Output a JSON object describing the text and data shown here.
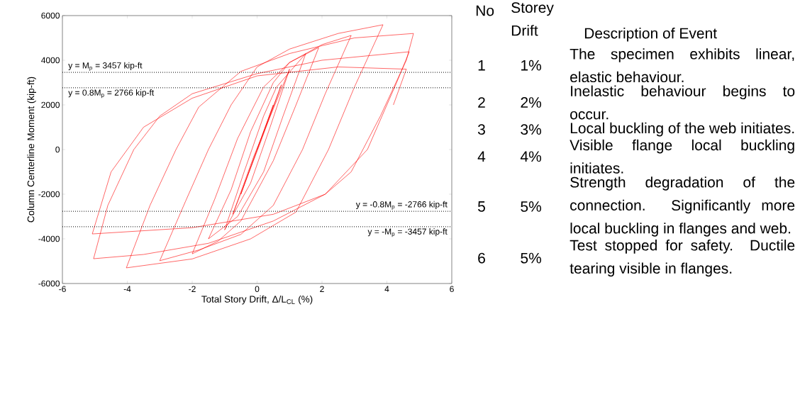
{
  "chart_data": [
    {
      "type": "line",
      "xlabel": "Total Story Drift, Δ/L$_{CL}$ (%)",
      "ylabel": "Column Centerline Moment (kip-ft)",
      "xlim": [
        -6,
        6
      ],
      "xticks": [
        -6,
        -4,
        -2,
        0,
        2,
        4,
        6
      ],
      "ylim": [
        -6000,
        6000
      ],
      "yticks": [
        -6000,
        -4000,
        -2000,
        0,
        2000,
        4000,
        6000
      ],
      "series": [
        {
          "color": "#ff0000",
          "x": [
            0,
            0.5,
            -0.5,
            0,
            0.75,
            0.1,
            -0.75,
            -0.1,
            1.0,
            0.4,
            -0.2,
            -1.0,
            -0.4,
            0.2,
            0.6,
            1.5,
            0.8,
            0.2,
            -0.6,
            -1.5,
            -0.8,
            -0.2,
            0.5,
            1.0,
            1.9,
            1.2,
            0.5,
            -0.5,
            -1.2,
            -2.0,
            -1.3,
            -0.6,
            0.2,
            1.0,
            2.0,
            2.9,
            2.1,
            1.4,
            0.5,
            -0.5,
            -1.8,
            -3.0,
            -2.2,
            -1.5,
            -0.8,
            0.0,
            1.0,
            2.5,
            3.88,
            3.0,
            2.2,
            1.2,
            -0.2,
            -2.0,
            -4.03,
            -3.3,
            -2.5,
            -1.8,
            -0.5,
            1.0,
            3.0,
            4.82,
            4.6,
            3.8,
            2.9,
            2.1,
            0.5,
            -1.5,
            -3.5,
            -5.04,
            -4.6,
            -3.8,
            -3.0,
            -2.0,
            0.0,
            2.0,
            4.69,
            4.3,
            3.4,
            2.1,
            0.5,
            -2.0,
            -5.08,
            -4.5,
            -3.5,
            -2.0,
            0,
            2.5,
            4.6,
            4.2
          ],
          "values": [
            0,
            2000,
            -2000,
            0,
            2900,
            300,
            -2900,
            -300,
            3600,
            1000,
            -1500,
            -3600,
            -1000,
            1500,
            2800,
            4300,
            1500,
            -1000,
            -3000,
            -4000,
            -1800,
            800,
            3000,
            3900,
            4570,
            2000,
            -500,
            -3200,
            -4100,
            -4670,
            -2200,
            500,
            2800,
            3900,
            4700,
            5110,
            2500,
            0,
            -2500,
            -3800,
            -4500,
            -4980,
            -2300,
            0,
            2000,
            3700,
            4500,
            5200,
            5590,
            2800,
            0,
            -2800,
            -4000,
            -4900,
            -5300,
            -2500,
            0,
            1900,
            3500,
            4300,
            5000,
            5200,
            4000,
            1500,
            -1000,
            -2000,
            -3200,
            -4200,
            -4700,
            -4890,
            -2500,
            0,
            1500,
            2500,
            3400,
            4000,
            4380,
            3000,
            0,
            -2000,
            -2900,
            -3500,
            -3780,
            -1000,
            1000,
            2300,
            3300,
            3700,
            3600,
            2000
          ]
        }
      ],
      "ref_lines": [
        {
          "axis": "y",
          "value": 3457,
          "label": "y = M$_{p}$ = 3457 kip-ft",
          "color": "#000000",
          "line_style": "dotted"
        },
        {
          "axis": "y",
          "value": 2766,
          "label": "y = 0.8M$_{p}$ = 2766 kip-ft",
          "color": "#000000",
          "line_style": "dotted"
        },
        {
          "axis": "y",
          "value": -2766,
          "label": "y = -0.8M$_{p}$ = -2766 kip-ft",
          "color": "#000000",
          "line_style": "dotted"
        },
        {
          "axis": "y",
          "value": -3457,
          "label": "y = -M$_{p}$ = -3457 kip-ft",
          "color": "#000000",
          "line_style": "dotted"
        }
      ]
    },
    {
      "type": "other",
      "annotations": [
        "No",
        "Storey Drift",
        "Description of Event",
        "1",
        "1%",
        "The specimen exhibits linear, elastic behaviour.",
        "2",
        "2%",
        "Inelastic behaviour begins to occur.",
        "3",
        "3%",
        "Local buckling of the web initiates.",
        "4",
        "4%",
        "Visible flange local buckling initiates.",
        "5",
        "5%",
        "Strength degradation of the connection. Significantly more local buckling in flanges and web.",
        "6",
        "5%",
        "Test stopped for safety. Ductile tearing visible in flanges."
      ]
    }
  ]
}
